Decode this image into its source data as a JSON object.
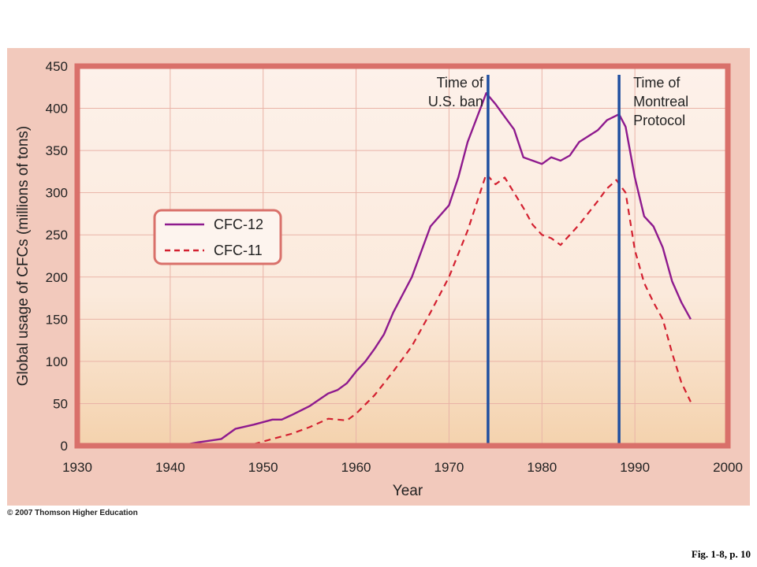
{
  "chart_data": {
    "type": "line",
    "xlabel": "Year",
    "ylabel": "Global usage of CFCs (millions of tons)",
    "xlim": [
      1930,
      2000
    ],
    "ylim": [
      0,
      450
    ],
    "xticks": [
      1930,
      1940,
      1950,
      1960,
      1970,
      1980,
      1990,
      2000
    ],
    "yticks": [
      0,
      50,
      100,
      150,
      200,
      250,
      300,
      350,
      400,
      450
    ],
    "grid": true,
    "legend_position": "left",
    "series": [
      {
        "name": "CFC-12",
        "style": "solid",
        "color": "#8e1a8e",
        "points": [
          [
            1941,
            0
          ],
          [
            1943,
            4
          ],
          [
            1945.5,
            8
          ],
          [
            1947,
            20
          ],
          [
            1949,
            25
          ],
          [
            1951,
            31
          ],
          [
            1952,
            31
          ],
          [
            1953,
            36
          ],
          [
            1955,
            47
          ],
          [
            1957,
            62
          ],
          [
            1958,
            66
          ],
          [
            1959,
            74
          ],
          [
            1960,
            88
          ],
          [
            1961,
            100
          ],
          [
            1962,
            115
          ],
          [
            1963,
            132
          ],
          [
            1964,
            158
          ],
          [
            1966,
            200
          ],
          [
            1968,
            260
          ],
          [
            1970,
            285
          ],
          [
            1971,
            318
          ],
          [
            1972,
            360
          ],
          [
            1974,
            418
          ],
          [
            1975,
            405
          ],
          [
            1976,
            390
          ],
          [
            1977,
            375
          ],
          [
            1978,
            342
          ],
          [
            1979,
            338
          ],
          [
            1980,
            334
          ],
          [
            1981,
            342
          ],
          [
            1982,
            338
          ],
          [
            1983,
            344
          ],
          [
            1984,
            360
          ],
          [
            1986,
            374
          ],
          [
            1987,
            386
          ],
          [
            1988.3,
            393
          ],
          [
            1989,
            378
          ],
          [
            1990,
            318
          ],
          [
            1991,
            272
          ],
          [
            1992,
            260
          ],
          [
            1993,
            235
          ],
          [
            1994,
            195
          ],
          [
            1995,
            170
          ],
          [
            1996,
            150
          ]
        ]
      },
      {
        "name": "CFC-11",
        "style": "dashed",
        "color": "#d32030",
        "points": [
          [
            1949,
            2
          ],
          [
            1951,
            8
          ],
          [
            1953,
            14
          ],
          [
            1955,
            22
          ],
          [
            1957,
            32
          ],
          [
            1958,
            31
          ],
          [
            1959,
            30
          ],
          [
            1960,
            38
          ],
          [
            1962,
            60
          ],
          [
            1964,
            88
          ],
          [
            1966,
            118
          ],
          [
            1968,
            158
          ],
          [
            1970,
            200
          ],
          [
            1972,
            255
          ],
          [
            1974,
            322
          ],
          [
            1975,
            310
          ],
          [
            1976,
            318
          ],
          [
            1977,
            300
          ],
          [
            1978,
            282
          ],
          [
            1979,
            262
          ],
          [
            1980,
            250
          ],
          [
            1981,
            246
          ],
          [
            1982,
            238
          ],
          [
            1984,
            262
          ],
          [
            1986,
            290
          ],
          [
            1987,
            305
          ],
          [
            1988,
            315
          ],
          [
            1989,
            300
          ],
          [
            1990,
            232
          ],
          [
            1991,
            193
          ],
          [
            1992,
            170
          ],
          [
            1993,
            150
          ],
          [
            1994,
            110
          ],
          [
            1995,
            75
          ],
          [
            1996,
            52
          ]
        ]
      }
    ],
    "annotations": [
      {
        "x": 1974.2,
        "text_lines": [
          "Time of",
          "U.S. ban"
        ]
      },
      {
        "x": 1988.3,
        "text_lines": [
          "Time of",
          "Montreal",
          "Protocol"
        ]
      }
    ],
    "colors": {
      "panel_background": "#f2c9bc",
      "frame": "#d9706a",
      "grid": "#e9b3a7",
      "marker_lines": "#1f4fa0"
    }
  },
  "footer": {
    "copyright": "© 2007 Thomson Higher Education",
    "figure_ref": "Fig. 1-8, p. 10"
  }
}
